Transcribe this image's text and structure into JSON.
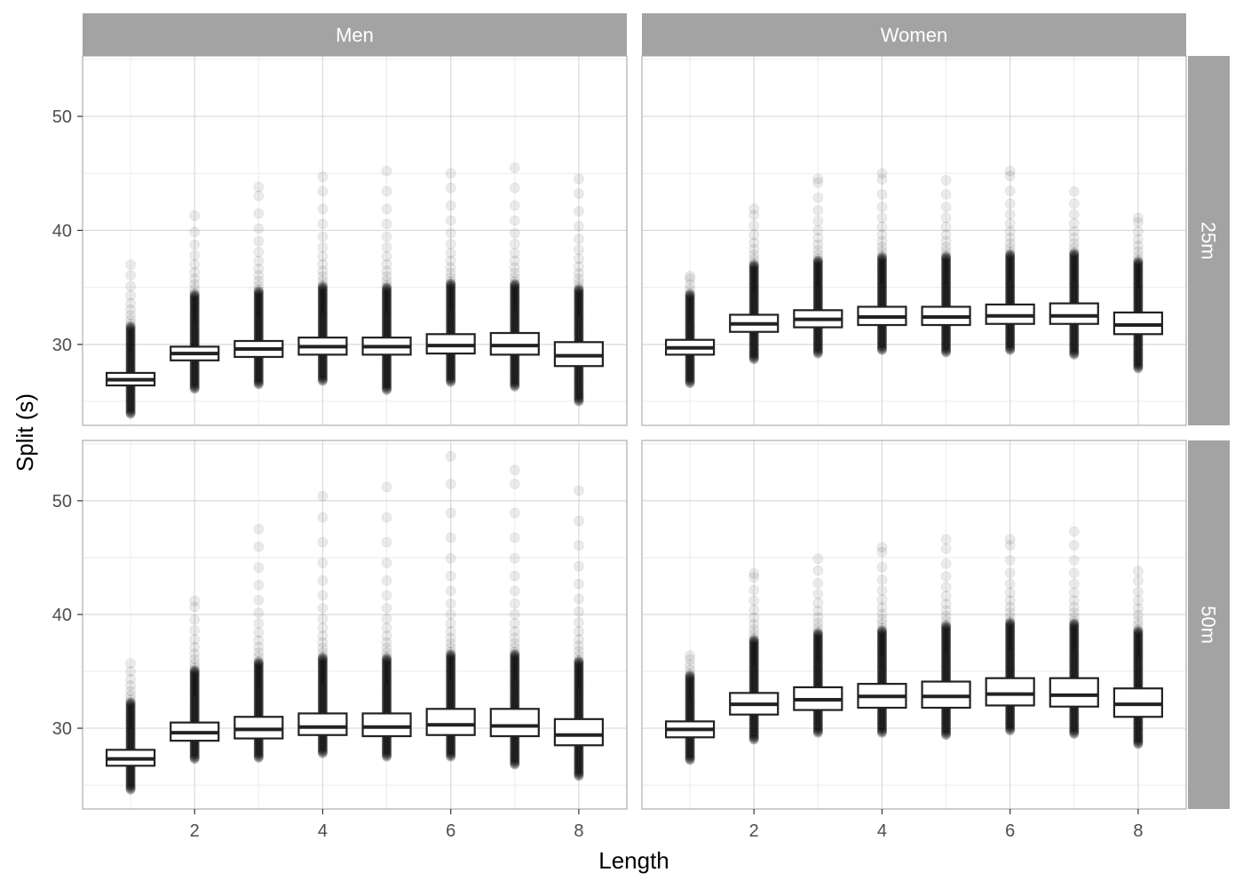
{
  "chart_data": {
    "type": "boxplot",
    "title": "",
    "xlabel": "Length",
    "ylabel": "Split (s)",
    "facet_columns": [
      "Men",
      "Women"
    ],
    "facet_rows": [
      "25m",
      "50m"
    ],
    "x_ticks": [
      2,
      4,
      6,
      8
    ],
    "y_ticks": [
      30,
      40,
      50
    ],
    "xlim": [
      0.25,
      8.75
    ],
    "ylim": [
      22.9,
      55.3
    ],
    "grid": true,
    "x": [
      1,
      2,
      3,
      4,
      5,
      6,
      7,
      8
    ],
    "panels": [
      {
        "column": "Men",
        "row": "25m",
        "boxes": [
          {
            "x": 1,
            "q1": 26.4,
            "median": 26.9,
            "q3": 27.5,
            "whisker_low": 24.3,
            "whisker_high": 29.3,
            "outlier_max": 37.0
          },
          {
            "x": 2,
            "q1": 28.6,
            "median": 29.2,
            "q3": 29.8,
            "whisker_low": 26.5,
            "whisker_high": 32.0,
            "outlier_max": 41.3
          },
          {
            "x": 3,
            "q1": 28.9,
            "median": 29.6,
            "q3": 30.3,
            "whisker_low": 26.9,
            "whisker_high": 32.3,
            "outlier_max": 43.8
          },
          {
            "x": 4,
            "q1": 29.1,
            "median": 29.8,
            "q3": 30.6,
            "whisker_low": 27.2,
            "whisker_high": 32.7,
            "outlier_max": 44.7
          },
          {
            "x": 5,
            "q1": 29.1,
            "median": 29.8,
            "q3": 30.6,
            "whisker_low": 26.4,
            "whisker_high": 32.7,
            "outlier_max": 45.2
          },
          {
            "x": 6,
            "q1": 29.2,
            "median": 29.9,
            "q3": 30.9,
            "whisker_low": 27.1,
            "whisker_high": 33.0,
            "outlier_max": 45.0
          },
          {
            "x": 7,
            "q1": 29.1,
            "median": 29.9,
            "q3": 31.0,
            "whisker_low": 26.7,
            "whisker_high": 33.0,
            "outlier_max": 45.5
          },
          {
            "x": 8,
            "q1": 28.1,
            "median": 29.0,
            "q3": 30.2,
            "whisker_low": 25.4,
            "whisker_high": 32.5,
            "outlier_max": 44.5
          }
        ]
      },
      {
        "column": "Women",
        "row": "25m",
        "boxes": [
          {
            "x": 1,
            "q1": 29.1,
            "median": 29.7,
            "q3": 30.4,
            "whisker_low": 27.0,
            "whisker_high": 32.0,
            "outlier_max": 36.0
          },
          {
            "x": 2,
            "q1": 31.1,
            "median": 31.8,
            "q3": 32.6,
            "whisker_low": 29.1,
            "whisker_high": 34.6,
            "outlier_max": 41.9
          },
          {
            "x": 3,
            "q1": 31.5,
            "median": 32.2,
            "q3": 33.0,
            "whisker_low": 29.6,
            "whisker_high": 35.0,
            "outlier_max": 44.5
          },
          {
            "x": 4,
            "q1": 31.7,
            "median": 32.4,
            "q3": 33.3,
            "whisker_low": 29.9,
            "whisker_high": 35.3,
            "outlier_max": 45.0
          },
          {
            "x": 5,
            "q1": 31.7,
            "median": 32.4,
            "q3": 33.3,
            "whisker_low": 29.7,
            "whisker_high": 35.3,
            "outlier_max": 44.4
          },
          {
            "x": 6,
            "q1": 31.8,
            "median": 32.5,
            "q3": 33.5,
            "whisker_low": 29.9,
            "whisker_high": 35.6,
            "outlier_max": 45.2
          },
          {
            "x": 7,
            "q1": 31.8,
            "median": 32.5,
            "q3": 33.6,
            "whisker_low": 29.5,
            "whisker_high": 35.6,
            "outlier_max": 43.4
          },
          {
            "x": 8,
            "q1": 30.9,
            "median": 31.7,
            "q3": 32.8,
            "whisker_low": 28.3,
            "whisker_high": 34.9,
            "outlier_max": 41.1
          }
        ]
      },
      {
        "column": "Men",
        "row": "50m",
        "boxes": [
          {
            "x": 1,
            "q1": 26.7,
            "median": 27.3,
            "q3": 28.1,
            "whisker_low": 25.0,
            "whisker_high": 30.0,
            "outlier_max": 35.7
          },
          {
            "x": 2,
            "q1": 28.9,
            "median": 29.6,
            "q3": 30.5,
            "whisker_low": 27.7,
            "whisker_high": 32.8,
            "outlier_max": 41.2
          },
          {
            "x": 3,
            "q1": 29.1,
            "median": 29.9,
            "q3": 31.0,
            "whisker_low": 27.8,
            "whisker_high": 33.4,
            "outlier_max": 47.5
          },
          {
            "x": 4,
            "q1": 29.4,
            "median": 30.1,
            "q3": 31.3,
            "whisker_low": 28.2,
            "whisker_high": 33.8,
            "outlier_max": 50.4
          },
          {
            "x": 5,
            "q1": 29.3,
            "median": 30.1,
            "q3": 31.3,
            "whisker_low": 27.9,
            "whisker_high": 33.8,
            "outlier_max": 51.2
          },
          {
            "x": 6,
            "q1": 29.4,
            "median": 30.3,
            "q3": 31.7,
            "whisker_low": 27.9,
            "whisker_high": 34.2,
            "outlier_max": 53.9
          },
          {
            "x": 7,
            "q1": 29.3,
            "median": 30.2,
            "q3": 31.7,
            "whisker_low": 27.2,
            "whisker_high": 34.2,
            "outlier_max": 52.7
          },
          {
            "x": 8,
            "q1": 28.5,
            "median": 29.4,
            "q3": 30.8,
            "whisker_low": 26.2,
            "whisker_high": 33.5,
            "outlier_max": 50.9
          }
        ]
      },
      {
        "column": "Women",
        "row": "50m",
        "boxes": [
          {
            "x": 1,
            "q1": 29.2,
            "median": 29.9,
            "q3": 30.6,
            "whisker_low": 27.6,
            "whisker_high": 32.3,
            "outlier_max": 36.4
          },
          {
            "x": 2,
            "q1": 31.2,
            "median": 32.1,
            "q3": 33.1,
            "whisker_low": 29.4,
            "whisker_high": 35.4,
            "outlier_max": 43.6
          },
          {
            "x": 3,
            "q1": 31.6,
            "median": 32.5,
            "q3": 33.6,
            "whisker_low": 30.0,
            "whisker_high": 36.0,
            "outlier_max": 44.9
          },
          {
            "x": 4,
            "q1": 31.8,
            "median": 32.8,
            "q3": 33.9,
            "whisker_low": 30.0,
            "whisker_high": 36.3,
            "outlier_max": 45.9
          },
          {
            "x": 5,
            "q1": 31.8,
            "median": 32.8,
            "q3": 34.1,
            "whisker_low": 29.8,
            "whisker_high": 36.6,
            "outlier_max": 46.6
          },
          {
            "x": 6,
            "q1": 32.0,
            "median": 33.0,
            "q3": 34.4,
            "whisker_low": 30.2,
            "whisker_high": 36.9,
            "outlier_max": 46.6
          },
          {
            "x": 7,
            "q1": 31.9,
            "median": 32.9,
            "q3": 34.4,
            "whisker_low": 29.9,
            "whisker_high": 36.9,
            "outlier_max": 47.3
          },
          {
            "x": 8,
            "q1": 31.0,
            "median": 32.1,
            "q3": 33.5,
            "whisker_low": 29.0,
            "whisker_high": 36.2,
            "outlier_max": 43.8
          }
        ]
      }
    ]
  }
}
